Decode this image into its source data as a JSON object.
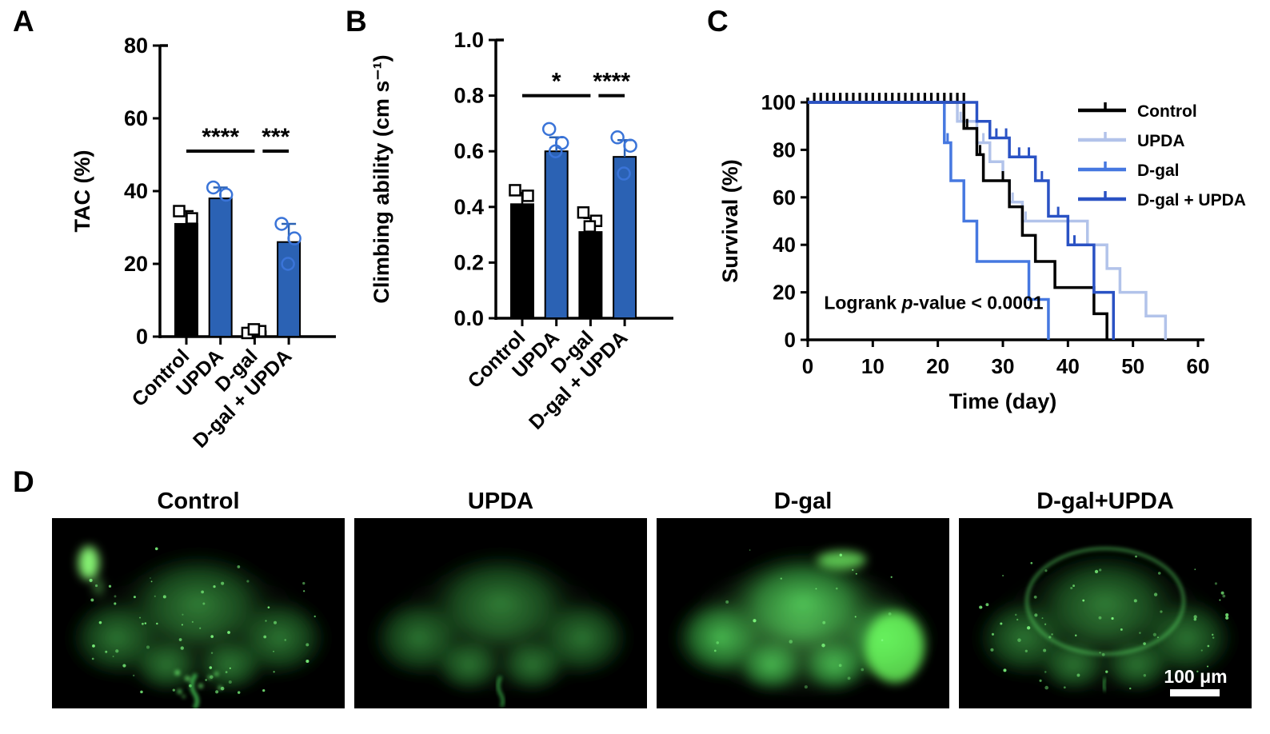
{
  "panels": {
    "a": "A",
    "b": "B",
    "c": "C",
    "d": "D"
  },
  "colors": {
    "background": "#ffffff",
    "black": "#000000",
    "bar_blue": "#2b62b4",
    "point_blue": "#3a74d8",
    "upda_line": "#b2c3ea",
    "dgal_line": "#4678e0",
    "dgal_upda_line": "#2a52c4",
    "micro_green": "#35c24a"
  },
  "chart_data": [
    {
      "id": "A",
      "type": "bar",
      "ylabel": "TAC (%)",
      "ylim": [
        0,
        80
      ],
      "ytick_step": 20,
      "ytick_decimals": 0,
      "categories": [
        "Control",
        "UPDA",
        "D-gal",
        "D-gal + UPDA"
      ],
      "values": [
        31,
        38,
        1.5,
        26
      ],
      "errors": [
        3.5,
        3,
        1,
        5
      ],
      "points": [
        [
          34.5,
          32.5
        ],
        [
          41,
          39
        ],
        [
          1,
          1.5,
          2
        ],
        [
          31,
          27,
          20
        ]
      ],
      "point_markers": [
        "square",
        "circle",
        "square",
        "circle"
      ],
      "bar_colors": [
        "#000000",
        "#2b62b4",
        "#000000",
        "#2b62b4"
      ],
      "significance": [
        {
          "from": 0,
          "to": 2,
          "label": "****",
          "y": 51
        },
        {
          "from": 2,
          "to": 3,
          "label": "***",
          "y": 51
        }
      ]
    },
    {
      "id": "B",
      "type": "bar",
      "ylabel": "Climbing ability (cm s⁻¹)",
      "ylim": [
        0,
        1.0
      ],
      "ytick_step": 0.2,
      "ytick_decimals": 1,
      "categories": [
        "Control",
        "UPDA",
        "D-gal",
        "D-gal + UPDA"
      ],
      "values": [
        0.41,
        0.6,
        0.31,
        0.58
      ],
      "errors": [
        0.04,
        0.05,
        0.05,
        0.06
      ],
      "points": [
        [
          0.46,
          0.44
        ],
        [
          0.68,
          0.63,
          0.6
        ],
        [
          0.38,
          0.35,
          0.33
        ],
        [
          0.65,
          0.62,
          0.52
        ]
      ],
      "point_markers": [
        "square",
        "circle",
        "square",
        "circle"
      ],
      "bar_colors": [
        "#000000",
        "#2b62b4",
        "#000000",
        "#2b62b4"
      ],
      "significance": [
        {
          "from": 0,
          "to": 2,
          "label": "*",
          "y": 0.8
        },
        {
          "from": 2,
          "to": 3,
          "label": "****",
          "y": 0.8
        }
      ]
    },
    {
      "id": "C",
      "type": "line",
      "variant": "survival-step",
      "xlabel": "Time (day)",
      "ylabel": "Survival (%)",
      "xlim": [
        0,
        60
      ],
      "xtick_step": 10,
      "ylim": [
        0,
        100
      ],
      "ytick_step": 20,
      "annotation": "Logrank p-value < 0.0001",
      "legend_position": "top-right",
      "top_censor_days": [
        1,
        2,
        3,
        4,
        5,
        6,
        7,
        8,
        9,
        10,
        11,
        12,
        13,
        14,
        15,
        16,
        17,
        18,
        19,
        20,
        21,
        22,
        23,
        24
      ],
      "series": [
        {
          "name": "Control",
          "color": "#000000",
          "points": [
            [
              0,
              100
            ],
            [
              24,
              100
            ],
            [
              24,
              89
            ],
            [
              26,
              89
            ],
            [
              26,
              78
            ],
            [
              27,
              78
            ],
            [
              27,
              67
            ],
            [
              31,
              67
            ],
            [
              31,
              56
            ],
            [
              33,
              56
            ],
            [
              33,
              44
            ],
            [
              35,
              44
            ],
            [
              35,
              33
            ],
            [
              38,
              33
            ],
            [
              38,
              22
            ],
            [
              44,
              22
            ],
            [
              44,
              11
            ],
            [
              46,
              11
            ],
            [
              46,
              0
            ]
          ],
          "censor": [
            [
              24.5,
              89
            ],
            [
              26.5,
              78
            ],
            [
              30,
              67
            ]
          ]
        },
        {
          "name": "UPDA",
          "color": "#b2c3ea",
          "points": [
            [
              0,
              100
            ],
            [
              23,
              100
            ],
            [
              23,
              92
            ],
            [
              26,
              92
            ],
            [
              26,
              83
            ],
            [
              28,
              83
            ],
            [
              28,
              75
            ],
            [
              30,
              75
            ],
            [
              30,
              67
            ],
            [
              31,
              67
            ],
            [
              31,
              58
            ],
            [
              33,
              58
            ],
            [
              33,
              50
            ],
            [
              43,
              50
            ],
            [
              43,
              40
            ],
            [
              46,
              40
            ],
            [
              46,
              30
            ],
            [
              48,
              30
            ],
            [
              48,
              20
            ],
            [
              52,
              20
            ],
            [
              52,
              10
            ],
            [
              55,
              10
            ],
            [
              55,
              0
            ]
          ],
          "censor": [
            [
              23.5,
              92
            ],
            [
              27,
              83
            ],
            [
              31.5,
              58
            ],
            [
              33.5,
              50
            ]
          ]
        },
        {
          "name": "D-gal",
          "color": "#4678e0",
          "points": [
            [
              0,
              100
            ],
            [
              21,
              100
            ],
            [
              21,
              83
            ],
            [
              22,
              83
            ],
            [
              22,
              67
            ],
            [
              24,
              67
            ],
            [
              24,
              50
            ],
            [
              26,
              50
            ],
            [
              26,
              33
            ],
            [
              34,
              33
            ],
            [
              34,
              17
            ],
            [
              37,
              17
            ],
            [
              37,
              0
            ]
          ],
          "censor": [
            [
              21.5,
              83
            ]
          ]
        },
        {
          "name": "D-gal + UPDA",
          "color": "#2a52c4",
          "points": [
            [
              0,
              100
            ],
            [
              26,
              100
            ],
            [
              26,
              92
            ],
            [
              28,
              92
            ],
            [
              28,
              85
            ],
            [
              31,
              85
            ],
            [
              31,
              77
            ],
            [
              35,
              77
            ],
            [
              35,
              67
            ],
            [
              37,
              67
            ],
            [
              37,
              52
            ],
            [
              40,
              52
            ],
            [
              40,
              40
            ],
            [
              44,
              40
            ],
            [
              44,
              20
            ],
            [
              47,
              20
            ],
            [
              47,
              0
            ]
          ],
          "censor": [
            [
              29,
              85
            ],
            [
              30.5,
              85
            ],
            [
              32.5,
              77
            ],
            [
              34,
              77
            ],
            [
              36,
              67
            ],
            [
              38.5,
              52
            ],
            [
              41,
              40
            ]
          ]
        }
      ]
    }
  ],
  "microscopy": {
    "images": [
      {
        "label": "Control",
        "intensity": "dim",
        "features": [
          "bright-spot-top-left",
          "speckles-dense",
          "ventral-debris"
        ]
      },
      {
        "label": "UPDA",
        "intensity": "dim",
        "features": [
          "smooth",
          "ventral-tendril"
        ]
      },
      {
        "label": "D-gal",
        "intensity": "bright",
        "features": [
          "bright-right-lobe",
          "bright-top-right",
          "speckles-sparse"
        ]
      },
      {
        "label": "D-gal+UPDA",
        "intensity": "dim",
        "features": [
          "rim-glow",
          "speckles-dense",
          "ventral-tendril-small"
        ],
        "scale_bar": "100 μm"
      }
    ]
  }
}
